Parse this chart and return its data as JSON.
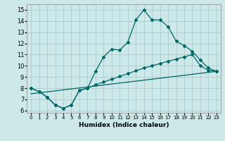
{
  "xlabel": "Humidex (Indice chaleur)",
  "bg_color": "#cce8e8",
  "grid_color": "#aacccc",
  "line_color": "#006666",
  "xlim": [
    -0.5,
    23.5
  ],
  "ylim": [
    5.8,
    15.5
  ],
  "xticks": [
    0,
    1,
    2,
    3,
    4,
    5,
    6,
    7,
    8,
    9,
    10,
    11,
    12,
    13,
    14,
    15,
    16,
    17,
    18,
    19,
    20,
    21,
    22,
    23
  ],
  "yticks": [
    6,
    7,
    8,
    9,
    10,
    11,
    12,
    13,
    14,
    15
  ],
  "line1_x": [
    0,
    1,
    2,
    3,
    4,
    5,
    6,
    7,
    8,
    9,
    10,
    11,
    12,
    13,
    14,
    15,
    16,
    17,
    18,
    19,
    20,
    21,
    22,
    23
  ],
  "line1_y": [
    8.0,
    7.7,
    7.2,
    6.5,
    6.2,
    6.5,
    7.8,
    8.0,
    9.5,
    10.8,
    11.5,
    11.4,
    12.1,
    14.1,
    15.0,
    14.1,
    14.1,
    13.5,
    12.2,
    11.8,
    11.3,
    10.5,
    9.8,
    9.5
  ],
  "line2_x": [
    0,
    1,
    2,
    3,
    4,
    5,
    6,
    7,
    8,
    9,
    10,
    11,
    12,
    13,
    14,
    15,
    16,
    17,
    18,
    19,
    20,
    21,
    22,
    23
  ],
  "line2_y": [
    8.0,
    7.7,
    7.2,
    6.5,
    6.2,
    6.5,
    7.8,
    8.0,
    8.3,
    8.55,
    8.8,
    9.05,
    9.3,
    9.55,
    9.8,
    10.0,
    10.2,
    10.4,
    10.6,
    10.8,
    11.0,
    10.0,
    9.6,
    9.5
  ],
  "line3_x": [
    0,
    23
  ],
  "line3_y": [
    7.5,
    9.5
  ],
  "tick_fontsize_x": 5,
  "tick_fontsize_y": 6,
  "xlabel_fontsize": 6.5,
  "marker_size": 2.0,
  "line_width": 0.9
}
